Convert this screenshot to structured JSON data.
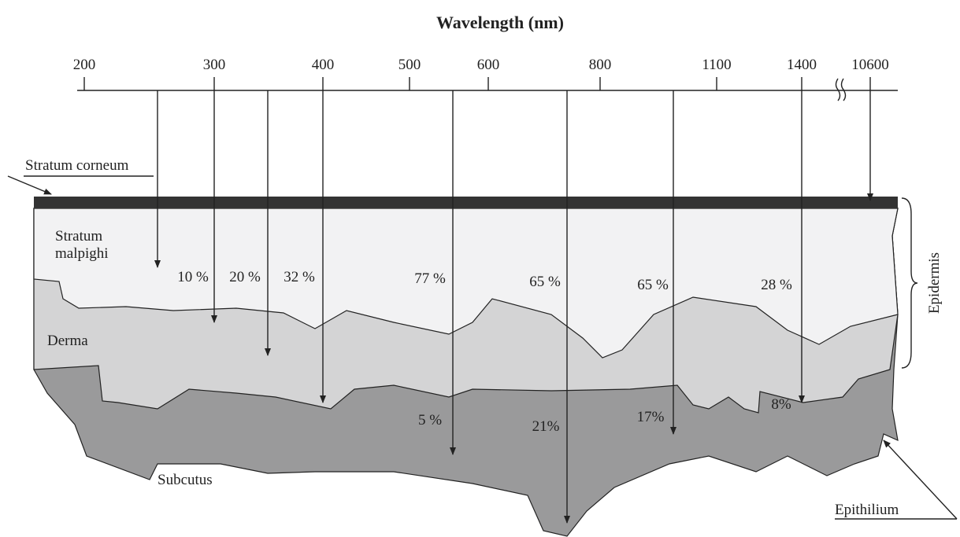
{
  "axis": {
    "title": "Wavelength (nm)",
    "ticks": [
      "200",
      "300",
      "400",
      "500",
      "600",
      "800",
      "1100",
      "1400",
      "10600"
    ]
  },
  "layers": {
    "stratum_corneum": "Stratum corneum",
    "stratum_malpighi": [
      "Stratum",
      "malpighi"
    ],
    "derma": "Derma",
    "subcutus": "Subcutus",
    "epidermis": "Epidermis",
    "epithilium": "Epithilium"
  },
  "percentages": [
    "10 %",
    "20 %",
    "32 %",
    "77 %",
    "65 %",
    "65 %",
    "28 %",
    "5 %",
    "21%",
    "17%",
    "8%"
  ]
}
